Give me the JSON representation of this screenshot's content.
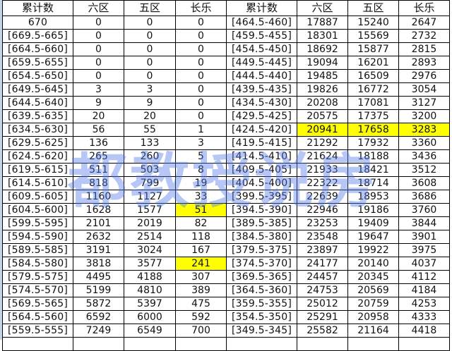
{
  "headers": [
    "累计数",
    "六区",
    "五区",
    "长乐",
    "累计数",
    "六区",
    "五区",
    "长乐"
  ],
  "highlight_color": "#ffff00",
  "left_rows": [
    [
      "670",
      "0",
      "0",
      "0"
    ],
    [
      "[669.5-665]",
      "0",
      "0",
      "0"
    ],
    [
      "[664.5-660]",
      "0",
      "0",
      "0"
    ],
    [
      "[659.5-655]",
      "0",
      "0",
      "0"
    ],
    [
      "[654.5-650]",
      "0",
      "0",
      "0"
    ],
    [
      "[649.5-645]",
      "3",
      "3",
      "0"
    ],
    [
      "[644.5-640]",
      "9",
      "9",
      "0"
    ],
    [
      "[639.5-635]",
      "20",
      "20",
      "0"
    ],
    [
      "[634.5-630]",
      "56",
      "55",
      "1"
    ],
    [
      "[629.5-625]",
      "136",
      "133",
      "3"
    ],
    [
      "[624.5-620]",
      "265",
      "260",
      "5"
    ],
    [
      "[619.5-615]",
      "511",
      "503",
      "8"
    ],
    [
      "[614.5-610]",
      "818",
      "799",
      "19"
    ],
    [
      "[609.5-605]",
      "1160",
      "1127",
      "33"
    ],
    [
      "[604.5-600]",
      "1628",
      "1577",
      "51"
    ],
    [
      "[599.5-595]",
      "2101",
      "2019",
      "82"
    ],
    [
      "[594.5-590]",
      "2632",
      "2514",
      "118"
    ],
    [
      "[589.5-585]",
      "3191",
      "3024",
      "167"
    ],
    [
      "[584.5-580]",
      "3818",
      "3577",
      "241"
    ],
    [
      "[579.5-575]",
      "4495",
      "4188",
      "307"
    ],
    [
      "[574.5-570]",
      "5199",
      "4810",
      "389"
    ],
    [
      "[569.5-565]",
      "5872",
      "5397",
      "475"
    ],
    [
      "[564.5-560]",
      "6592",
      "6000",
      "592"
    ],
    [
      "[559.5-555]",
      "7249",
      "6549",
      "700"
    ]
  ],
  "right_rows": [
    [
      "[464.5-460]",
      "17887",
      "15240",
      "2647"
    ],
    [
      "[459.5-455]",
      "18301",
      "15569",
      "2732"
    ],
    [
      "[454.5-450]",
      "18692",
      "15877",
      "2815"
    ],
    [
      "[449.5-445]",
      "19094",
      "16201",
      "2893"
    ],
    [
      "[444.5-440]",
      "19485",
      "16509",
      "2976"
    ],
    [
      "[439.5-435]",
      "19826",
      "16772",
      "3054"
    ],
    [
      "[434.5-430]",
      "20208",
      "17081",
      "3127"
    ],
    [
      "[429.5-425]",
      "20575",
      "17375",
      "3200"
    ],
    [
      "[424.5-420]",
      "20941",
      "17658",
      "3283"
    ],
    [
      "[419.5-415]",
      "21292",
      "17932",
      "3360"
    ],
    [
      "[414.5-410]",
      "21624",
      "18188",
      "3436"
    ],
    [
      "[409.5-405]",
      "21933",
      "18421",
      "3512"
    ],
    [
      "[404.5-400]",
      "22322",
      "18714",
      "3608"
    ],
    [
      "[399.5-395]",
      "22639",
      "18953",
      "3686"
    ],
    [
      "[394.5-390]",
      "22946",
      "19186",
      "3760"
    ],
    [
      "[389.5-385]",
      "23253",
      "19409",
      "3844"
    ],
    [
      "[384.5-380]",
      "23548",
      "19647",
      "3901"
    ],
    [
      "[379.5-375]",
      "23897",
      "19922",
      "3975"
    ],
    [
      "[374.5-370]",
      "24177",
      "20140",
      "4037"
    ],
    [
      "[369.5-365]",
      "24457",
      "20345",
      "4112"
    ],
    [
      "[364.5-360]",
      "24753",
      "20569",
      "4184"
    ],
    [
      "[359.5-355]",
      "25012",
      "20759",
      "4253"
    ],
    [
      "[354.5-350]",
      "25291",
      "20958",
      "4333"
    ],
    [
      "[349.5-345]",
      "25582",
      "21164",
      "4418"
    ]
  ],
  "highlighted_cells": [
    {
      "side": "left",
      "row": 14,
      "col": 3
    },
    {
      "side": "left",
      "row": 18,
      "col": 3
    },
    {
      "side": "right",
      "row": 8,
      "col": 1
    },
    {
      "side": "right",
      "row": 8,
      "col": 2
    },
    {
      "side": "right",
      "row": 8,
      "col": 3
    }
  ],
  "watermark": "都教授说房"
}
